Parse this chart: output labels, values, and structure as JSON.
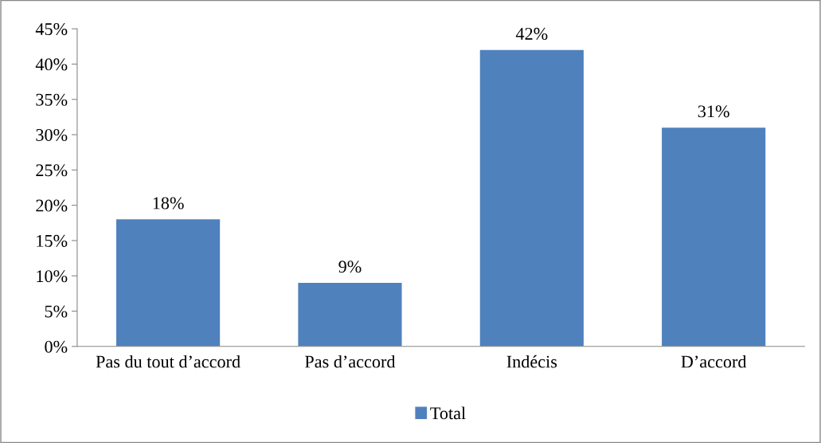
{
  "chart_data": {
    "type": "bar",
    "categories": [
      "Pas du tout d’accord",
      "Pas d’accord",
      "Indécis",
      "D’accord"
    ],
    "series": [
      {
        "name": "Total",
        "color": "#4f81bd",
        "values": [
          18,
          9,
          42,
          31
        ],
        "value_labels": [
          "18%",
          "9%",
          "42%",
          "31%"
        ]
      }
    ],
    "ylim": [
      0,
      45
    ],
    "yticks": [
      {
        "value": 0,
        "label": "0%"
      },
      {
        "value": 5,
        "label": "5%"
      },
      {
        "value": 10,
        "label": "10%"
      },
      {
        "value": 15,
        "label": "15%"
      },
      {
        "value": 20,
        "label": "20%"
      },
      {
        "value": 25,
        "label": "25%"
      },
      {
        "value": 30,
        "label": "30%"
      },
      {
        "value": 35,
        "label": "35%"
      },
      {
        "value": 40,
        "label": "40%"
      },
      {
        "value": 45,
        "label": "45%"
      }
    ],
    "grid": false,
    "legend": "bottom"
  }
}
